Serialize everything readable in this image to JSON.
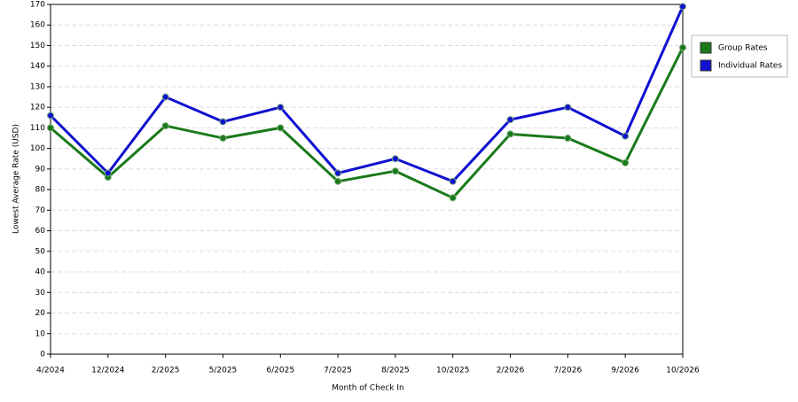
{
  "chart_data": {
    "type": "line",
    "x_label": "Month of Check In",
    "y_label": "Lowest Average Rate (USD)",
    "categories": [
      "4/2024",
      "12/2024",
      "2/2025",
      "5/2025",
      "6/2025",
      "7/2025",
      "8/2025",
      "10/2025",
      "2/2026",
      "7/2026",
      "9/2026",
      "10/2026"
    ],
    "series": [
      {
        "name": "Group Rates",
        "color": "#1a7a1a",
        "values": [
          110,
          86,
          111,
          105,
          110,
          84,
          89,
          76,
          107,
          105,
          93,
          149
        ]
      },
      {
        "name": "Individual Rates",
        "color": "#1010d0",
        "values": [
          116,
          88,
          125,
          113,
          120,
          88,
          95,
          84,
          114,
          120,
          106,
          169
        ]
      }
    ],
    "ylim": [
      0,
      170
    ],
    "yticks": [
      0,
      10,
      20,
      30,
      40,
      50,
      60,
      70,
      80,
      90,
      100,
      110,
      120,
      130,
      140,
      150,
      160,
      170
    ],
    "grid": true,
    "legend": "right"
  }
}
